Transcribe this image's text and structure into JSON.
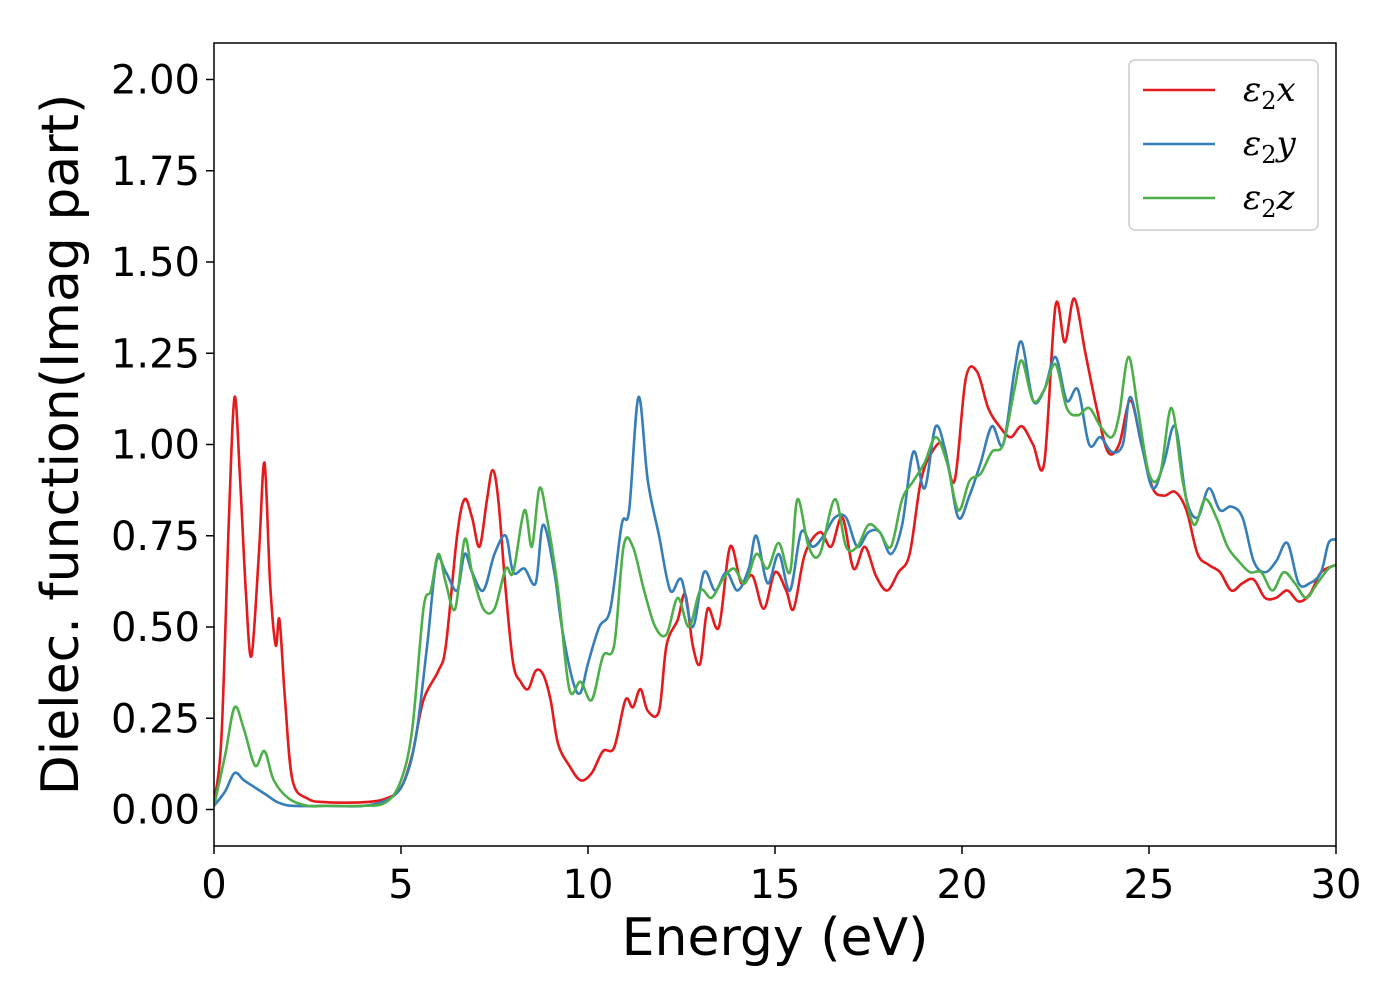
{
  "chart_data": {
    "type": "line",
    "title": "",
    "xlabel": "Energy (eV)",
    "ylabel": "Dielec. function(Imag part)",
    "xlim": [
      0,
      30
    ],
    "ylim": [
      -0.1,
      2.1
    ],
    "xticks": [
      0,
      5,
      10,
      15,
      20,
      25,
      30
    ],
    "xtick_labels": [
      "0",
      "5",
      "10",
      "15",
      "20",
      "25",
      "30"
    ],
    "yticks": [
      0.0,
      0.25,
      0.5,
      0.75,
      1.0,
      1.25,
      1.5,
      1.75,
      2.0
    ],
    "ytick_labels": [
      "0.00",
      "0.25",
      "0.50",
      "0.75",
      "1.00",
      "1.25",
      "1.50",
      "1.75",
      "2.00"
    ],
    "grid": false,
    "legend_position": "top-right",
    "series": [
      {
        "name": "ε2x",
        "legend_base": "ε",
        "legend_sub": "2",
        "legend_var": "x",
        "color": "#e41a1c",
        "points": [
          [
            0,
            0.02
          ],
          [
            0.2,
            0.2
          ],
          [
            0.4,
            0.8
          ],
          [
            0.55,
            1.13
          ],
          [
            0.7,
            0.9
          ],
          [
            0.85,
            0.6
          ],
          [
            1.0,
            0.42
          ],
          [
            1.2,
            0.7
          ],
          [
            1.35,
            0.95
          ],
          [
            1.5,
            0.62
          ],
          [
            1.65,
            0.45
          ],
          [
            1.75,
            0.52
          ],
          [
            1.9,
            0.3
          ],
          [
            2.1,
            0.08
          ],
          [
            2.5,
            0.03
          ],
          [
            3,
            0.02
          ],
          [
            4,
            0.02
          ],
          [
            4.6,
            0.03
          ],
          [
            5,
            0.06
          ],
          [
            5.3,
            0.15
          ],
          [
            5.6,
            0.3
          ],
          [
            6.0,
            0.38
          ],
          [
            6.2,
            0.45
          ],
          [
            6.5,
            0.75
          ],
          [
            6.7,
            0.85
          ],
          [
            6.9,
            0.8
          ],
          [
            7.1,
            0.72
          ],
          [
            7.3,
            0.85
          ],
          [
            7.45,
            0.93
          ],
          [
            7.6,
            0.85
          ],
          [
            7.8,
            0.6
          ],
          [
            8.0,
            0.4
          ],
          [
            8.2,
            0.35
          ],
          [
            8.4,
            0.33
          ],
          [
            8.6,
            0.38
          ],
          [
            8.8,
            0.37
          ],
          [
            9.0,
            0.3
          ],
          [
            9.2,
            0.18
          ],
          [
            9.5,
            0.12
          ],
          [
            9.8,
            0.08
          ],
          [
            10.1,
            0.1
          ],
          [
            10.4,
            0.16
          ],
          [
            10.7,
            0.17
          ],
          [
            11.0,
            0.3
          ],
          [
            11.2,
            0.28
          ],
          [
            11.4,
            0.33
          ],
          [
            11.6,
            0.27
          ],
          [
            11.9,
            0.27
          ],
          [
            12.1,
            0.45
          ],
          [
            12.4,
            0.52
          ],
          [
            12.6,
            0.59
          ],
          [
            12.8,
            0.45
          ],
          [
            13.0,
            0.4
          ],
          [
            13.2,
            0.55
          ],
          [
            13.5,
            0.5
          ],
          [
            13.8,
            0.72
          ],
          [
            14.1,
            0.62
          ],
          [
            14.4,
            0.64
          ],
          [
            14.7,
            0.55
          ],
          [
            15.0,
            0.65
          ],
          [
            15.3,
            0.6
          ],
          [
            15.5,
            0.55
          ],
          [
            15.8,
            0.7
          ],
          [
            16.2,
            0.76
          ],
          [
            16.5,
            0.72
          ],
          [
            16.8,
            0.8
          ],
          [
            17.1,
            0.66
          ],
          [
            17.4,
            0.72
          ],
          [
            17.7,
            0.64
          ],
          [
            18.0,
            0.6
          ],
          [
            18.3,
            0.65
          ],
          [
            18.6,
            0.7
          ],
          [
            18.9,
            0.9
          ],
          [
            19.2,
            0.98
          ],
          [
            19.5,
            1.0
          ],
          [
            19.8,
            0.9
          ],
          [
            20.1,
            1.18
          ],
          [
            20.4,
            1.2
          ],
          [
            20.7,
            1.1
          ],
          [
            21.0,
            1.05
          ],
          [
            21.3,
            1.02
          ],
          [
            21.6,
            1.05
          ],
          [
            21.9,
            1.0
          ],
          [
            22.2,
            0.95
          ],
          [
            22.5,
            1.38
          ],
          [
            22.75,
            1.28
          ],
          [
            23.0,
            1.4
          ],
          [
            23.3,
            1.25
          ],
          [
            23.6,
            1.1
          ],
          [
            23.9,
            0.98
          ],
          [
            24.2,
            1.0
          ],
          [
            24.5,
            1.12
          ],
          [
            24.8,
            1.0
          ],
          [
            25.1,
            0.88
          ],
          [
            25.4,
            0.86
          ],
          [
            25.7,
            0.87
          ],
          [
            26.0,
            0.82
          ],
          [
            26.3,
            0.7
          ],
          [
            26.6,
            0.67
          ],
          [
            26.9,
            0.65
          ],
          [
            27.2,
            0.6
          ],
          [
            27.5,
            0.62
          ],
          [
            27.8,
            0.63
          ],
          [
            28.1,
            0.58
          ],
          [
            28.4,
            0.58
          ],
          [
            28.7,
            0.6
          ],
          [
            29.0,
            0.57
          ],
          [
            29.3,
            0.59
          ],
          [
            29.6,
            0.65
          ],
          [
            30,
            0.67
          ]
        ]
      },
      {
        "name": "ε2y",
        "legend_base": "ε",
        "legend_sub": "2",
        "legend_var": "y",
        "color": "#377eb8",
        "points": [
          [
            0,
            0.01
          ],
          [
            0.3,
            0.05
          ],
          [
            0.55,
            0.1
          ],
          [
            0.8,
            0.08
          ],
          [
            1.1,
            0.06
          ],
          [
            1.4,
            0.04
          ],
          [
            1.7,
            0.02
          ],
          [
            2.1,
            0.01
          ],
          [
            3,
            0.01
          ],
          [
            4,
            0.01
          ],
          [
            4.7,
            0.03
          ],
          [
            5.1,
            0.08
          ],
          [
            5.4,
            0.2
          ],
          [
            5.7,
            0.45
          ],
          [
            5.95,
            0.68
          ],
          [
            6.2,
            0.65
          ],
          [
            6.5,
            0.6
          ],
          [
            6.7,
            0.7
          ],
          [
            6.9,
            0.65
          ],
          [
            7.2,
            0.6
          ],
          [
            7.5,
            0.7
          ],
          [
            7.8,
            0.75
          ],
          [
            8.0,
            0.65
          ],
          [
            8.3,
            0.66
          ],
          [
            8.6,
            0.62
          ],
          [
            8.8,
            0.78
          ],
          [
            9.1,
            0.65
          ],
          [
            9.3,
            0.5
          ],
          [
            9.6,
            0.35
          ],
          [
            9.8,
            0.32
          ],
          [
            10.0,
            0.4
          ],
          [
            10.3,
            0.5
          ],
          [
            10.6,
            0.55
          ],
          [
            10.9,
            0.78
          ],
          [
            11.1,
            0.82
          ],
          [
            11.35,
            1.13
          ],
          [
            11.6,
            0.9
          ],
          [
            11.9,
            0.75
          ],
          [
            12.2,
            0.6
          ],
          [
            12.5,
            0.63
          ],
          [
            12.8,
            0.5
          ],
          [
            13.1,
            0.65
          ],
          [
            13.4,
            0.6
          ],
          [
            13.7,
            0.65
          ],
          [
            14.0,
            0.6
          ],
          [
            14.3,
            0.66
          ],
          [
            14.5,
            0.75
          ],
          [
            14.8,
            0.62
          ],
          [
            15.1,
            0.7
          ],
          [
            15.4,
            0.6
          ],
          [
            15.7,
            0.76
          ],
          [
            16.0,
            0.72
          ],
          [
            16.3,
            0.75
          ],
          [
            16.6,
            0.8
          ],
          [
            16.9,
            0.8
          ],
          [
            17.2,
            0.72
          ],
          [
            17.5,
            0.76
          ],
          [
            17.8,
            0.76
          ],
          [
            18.1,
            0.7
          ],
          [
            18.4,
            0.78
          ],
          [
            18.7,
            0.98
          ],
          [
            19.0,
            0.88
          ],
          [
            19.3,
            1.05
          ],
          [
            19.6,
            0.96
          ],
          [
            19.9,
            0.8
          ],
          [
            20.2,
            0.86
          ],
          [
            20.5,
            0.95
          ],
          [
            20.8,
            1.05
          ],
          [
            21.1,
            1.0
          ],
          [
            21.4,
            1.2
          ],
          [
            21.6,
            1.28
          ],
          [
            21.9,
            1.12
          ],
          [
            22.2,
            1.15
          ],
          [
            22.5,
            1.24
          ],
          [
            22.8,
            1.12
          ],
          [
            23.1,
            1.15
          ],
          [
            23.4,
            1.0
          ],
          [
            23.7,
            1.02
          ],
          [
            24.0,
            0.98
          ],
          [
            24.3,
            1.0
          ],
          [
            24.5,
            1.13
          ],
          [
            24.8,
            1.0
          ],
          [
            25.1,
            0.88
          ],
          [
            25.4,
            0.95
          ],
          [
            25.7,
            1.05
          ],
          [
            26.0,
            0.85
          ],
          [
            26.3,
            0.8
          ],
          [
            26.6,
            0.88
          ],
          [
            26.9,
            0.82
          ],
          [
            27.2,
            0.83
          ],
          [
            27.5,
            0.8
          ],
          [
            27.8,
            0.68
          ],
          [
            28.1,
            0.65
          ],
          [
            28.4,
            0.68
          ],
          [
            28.7,
            0.73
          ],
          [
            29.0,
            0.62
          ],
          [
            29.3,
            0.62
          ],
          [
            29.6,
            0.65
          ],
          [
            29.8,
            0.73
          ],
          [
            30,
            0.74
          ]
        ]
      },
      {
        "name": "ε2z",
        "legend_base": "ε",
        "legend_sub": "2",
        "legend_var": "z",
        "color": "#4daf4a",
        "points": [
          [
            0,
            0.01
          ],
          [
            0.3,
            0.15
          ],
          [
            0.55,
            0.28
          ],
          [
            0.8,
            0.22
          ],
          [
            1.1,
            0.12
          ],
          [
            1.35,
            0.16
          ],
          [
            1.6,
            0.08
          ],
          [
            2.0,
            0.03
          ],
          [
            2.5,
            0.01
          ],
          [
            3,
            0.01
          ],
          [
            4,
            0.01
          ],
          [
            4.6,
            0.02
          ],
          [
            5.0,
            0.08
          ],
          [
            5.3,
            0.22
          ],
          [
            5.6,
            0.55
          ],
          [
            5.8,
            0.6
          ],
          [
            6.0,
            0.7
          ],
          [
            6.2,
            0.62
          ],
          [
            6.45,
            0.55
          ],
          [
            6.7,
            0.74
          ],
          [
            6.9,
            0.65
          ],
          [
            7.2,
            0.55
          ],
          [
            7.5,
            0.55
          ],
          [
            7.8,
            0.66
          ],
          [
            8.0,
            0.65
          ],
          [
            8.3,
            0.82
          ],
          [
            8.5,
            0.72
          ],
          [
            8.7,
            0.88
          ],
          [
            8.9,
            0.8
          ],
          [
            9.2,
            0.6
          ],
          [
            9.5,
            0.33
          ],
          [
            9.8,
            0.35
          ],
          [
            10.1,
            0.3
          ],
          [
            10.4,
            0.42
          ],
          [
            10.7,
            0.45
          ],
          [
            10.95,
            0.72
          ],
          [
            11.2,
            0.72
          ],
          [
            11.5,
            0.6
          ],
          [
            11.8,
            0.5
          ],
          [
            12.1,
            0.48
          ],
          [
            12.4,
            0.58
          ],
          [
            12.7,
            0.5
          ],
          [
            13.0,
            0.6
          ],
          [
            13.3,
            0.58
          ],
          [
            13.6,
            0.63
          ],
          [
            13.9,
            0.66
          ],
          [
            14.2,
            0.62
          ],
          [
            14.5,
            0.7
          ],
          [
            14.8,
            0.66
          ],
          [
            15.1,
            0.73
          ],
          [
            15.4,
            0.65
          ],
          [
            15.6,
            0.85
          ],
          [
            15.9,
            0.72
          ],
          [
            16.2,
            0.7
          ],
          [
            16.6,
            0.85
          ],
          [
            16.9,
            0.72
          ],
          [
            17.2,
            0.72
          ],
          [
            17.5,
            0.78
          ],
          [
            17.8,
            0.76
          ],
          [
            18.1,
            0.72
          ],
          [
            18.4,
            0.85
          ],
          [
            18.7,
            0.9
          ],
          [
            19.0,
            0.95
          ],
          [
            19.3,
            1.02
          ],
          [
            19.6,
            0.95
          ],
          [
            19.9,
            0.82
          ],
          [
            20.2,
            0.9
          ],
          [
            20.5,
            0.92
          ],
          [
            20.8,
            0.98
          ],
          [
            21.1,
            1.0
          ],
          [
            21.4,
            1.15
          ],
          [
            21.6,
            1.23
          ],
          [
            21.9,
            1.12
          ],
          [
            22.2,
            1.15
          ],
          [
            22.5,
            1.22
          ],
          [
            22.8,
            1.1
          ],
          [
            23.1,
            1.08
          ],
          [
            23.4,
            1.1
          ],
          [
            23.7,
            1.05
          ],
          [
            24.0,
            1.02
          ],
          [
            24.2,
            1.08
          ],
          [
            24.45,
            1.24
          ],
          [
            24.7,
            1.1
          ],
          [
            25.0,
            0.92
          ],
          [
            25.3,
            0.92
          ],
          [
            25.6,
            1.1
          ],
          [
            25.9,
            0.9
          ],
          [
            26.2,
            0.78
          ],
          [
            26.5,
            0.85
          ],
          [
            26.8,
            0.8
          ],
          [
            27.1,
            0.72
          ],
          [
            27.4,
            0.68
          ],
          [
            27.7,
            0.65
          ],
          [
            28.0,
            0.65
          ],
          [
            28.3,
            0.6
          ],
          [
            28.6,
            0.65
          ],
          [
            28.9,
            0.62
          ],
          [
            29.2,
            0.58
          ],
          [
            29.5,
            0.62
          ],
          [
            29.8,
            0.66
          ],
          [
            30,
            0.67
          ]
        ]
      }
    ]
  }
}
